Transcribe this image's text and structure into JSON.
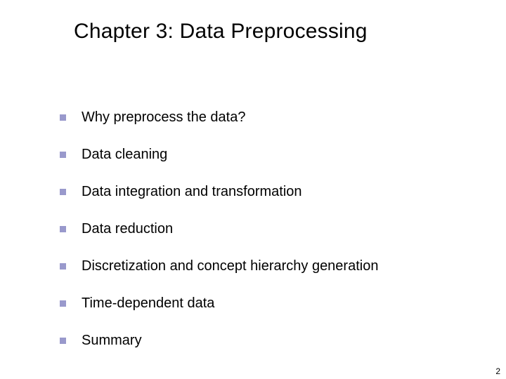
{
  "slide": {
    "title": "Chapter 3: Data Preprocessing",
    "bullets": [
      "Why preprocess the data?",
      "Data cleaning",
      "Data integration and transformation",
      "Data reduction",
      "Discretization and concept hierarchy generation",
      "Time-dependent data",
      "Summary"
    ],
    "page_number": "2",
    "bullet_color": "#9999cc",
    "title_fontsize": 30,
    "bullet_fontsize": 20,
    "background_color": "#ffffff",
    "text_color": "#000000"
  }
}
